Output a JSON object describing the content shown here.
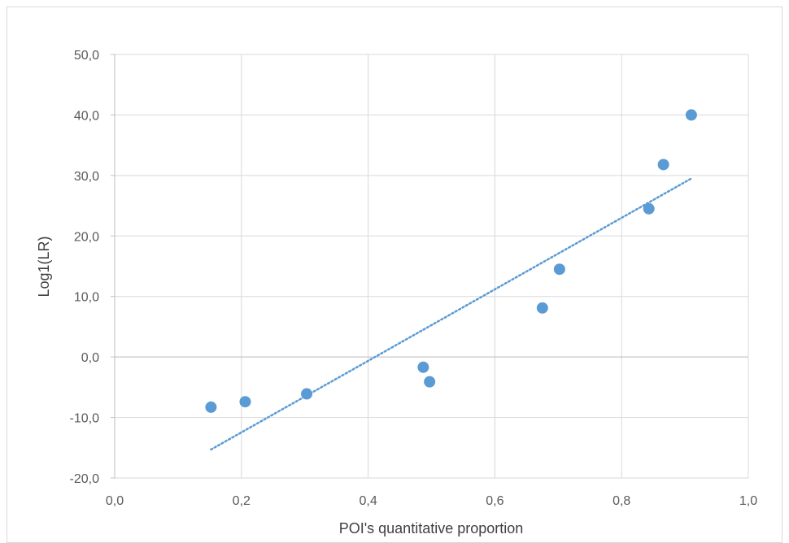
{
  "chart_data": {
    "type": "scatter",
    "title": "",
    "xlabel": "POI's quantitative proportion",
    "ylabel": "Log1(LR)",
    "xlim": [
      0.0,
      1.0
    ],
    "ylim": [
      -20.0,
      50.0
    ],
    "x_ticks": [
      0.0,
      0.2,
      0.4,
      0.6,
      0.8,
      1.0
    ],
    "y_ticks": [
      -20.0,
      -10.0,
      0.0,
      10.0,
      20.0,
      30.0,
      40.0,
      50.0
    ],
    "x_tick_labels": [
      "0,0",
      "0,2",
      "0,4",
      "0,6",
      "0,8",
      "1,0"
    ],
    "y_tick_labels": [
      "-20,0",
      "-10,0",
      "0,0",
      "10,0",
      "20,0",
      "30,0",
      "40,0",
      "50,0"
    ],
    "grid": true,
    "legend": "none",
    "series": [
      {
        "color": "#5b9bd5",
        "points": [
          {
            "x": 0.152,
            "y": -8.3
          },
          {
            "x": 0.206,
            "y": -7.4
          },
          {
            "x": 0.303,
            "y": -6.1
          },
          {
            "x": 0.487,
            "y": -1.7
          },
          {
            "x": 0.497,
            "y": -4.1
          },
          {
            "x": 0.675,
            "y": 8.1
          },
          {
            "x": 0.702,
            "y": 14.5
          },
          {
            "x": 0.843,
            "y": 24.5
          },
          {
            "x": 0.866,
            "y": 31.8
          },
          {
            "x": 0.91,
            "y": 40.0
          }
        ]
      }
    ],
    "trendline": {
      "type": "linear",
      "style": "dotted",
      "color": "#5b9bd5",
      "x": [
        0.152,
        0.91
      ],
      "y": [
        -15.3,
        29.5
      ]
    }
  }
}
